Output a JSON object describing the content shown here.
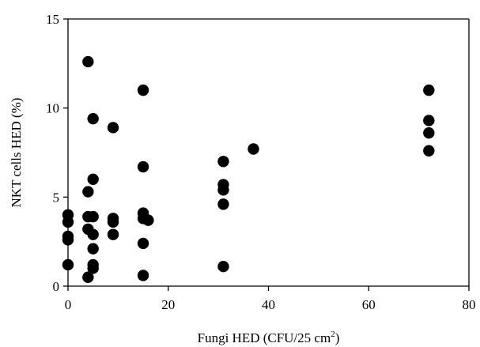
{
  "chart_data": {
    "type": "scatter",
    "xlabel": "Fungi HED (CFU/25 cm",
    "xlabel_sup": "2",
    "xlabel_end": ")",
    "ylabel": "NKT cells HED (%)",
    "xlim": [
      0,
      80
    ],
    "ylim": [
      0,
      15
    ],
    "xticks": [
      0,
      20,
      40,
      60,
      80
    ],
    "yticks": [
      0,
      5,
      10,
      15
    ],
    "xtick_labels": [
      "0",
      "20",
      "40",
      "60",
      "80"
    ],
    "ytick_labels": [
      "0",
      "5",
      "10",
      "15"
    ],
    "grid": false,
    "marker_color": "#000000",
    "series": [
      {
        "points": [
          [
            0,
            4.0
          ],
          [
            0,
            3.6
          ],
          [
            0,
            2.8
          ],
          [
            0,
            2.6
          ],
          [
            0,
            1.2
          ],
          [
            4,
            12.6
          ],
          [
            4,
            5.3
          ],
          [
            4,
            3.9
          ],
          [
            4,
            3.2
          ],
          [
            4,
            0.5
          ],
          [
            5,
            9.4
          ],
          [
            5,
            6.0
          ],
          [
            5,
            3.9
          ],
          [
            5,
            2.9
          ],
          [
            5,
            2.1
          ],
          [
            5,
            1.2
          ],
          [
            5,
            1.0
          ],
          [
            9,
            8.9
          ],
          [
            9,
            3.8
          ],
          [
            9,
            3.6
          ],
          [
            9,
            2.9
          ],
          [
            15,
            11.0
          ],
          [
            15,
            6.7
          ],
          [
            15,
            4.1
          ],
          [
            15,
            3.8
          ],
          [
            15,
            2.4
          ],
          [
            15,
            0.6
          ],
          [
            16,
            3.7
          ],
          [
            31,
            7.0
          ],
          [
            31,
            5.7
          ],
          [
            31,
            5.4
          ],
          [
            31,
            4.6
          ],
          [
            31,
            1.1
          ],
          [
            37,
            7.7
          ],
          [
            72,
            11.0
          ],
          [
            72,
            9.3
          ],
          [
            72,
            8.6
          ],
          [
            72,
            7.6
          ]
        ]
      }
    ]
  }
}
